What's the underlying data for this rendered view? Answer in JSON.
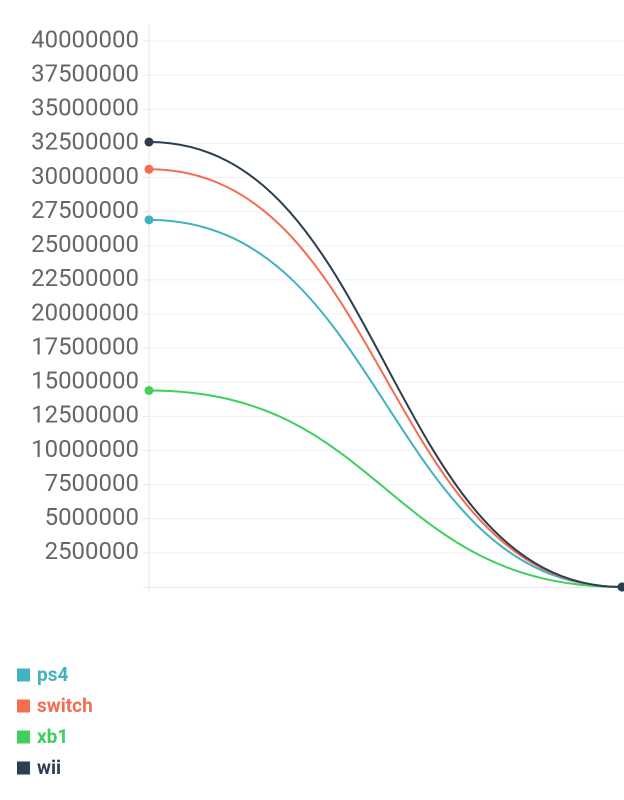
{
  "chart_data": {
    "type": "line",
    "categories": [
      null,
      null
    ],
    "series": [
      {
        "name": "ps4",
        "color": "#41b3c0",
        "values": [
          26900000,
          0
        ]
      },
      {
        "name": "switch",
        "color": "#f46d4f",
        "values": [
          30600000,
          0
        ]
      },
      {
        "name": "xb1",
        "color": "#3ecf5c",
        "values": [
          14400000,
          0
        ]
      },
      {
        "name": "wii",
        "color": "#2c3e50",
        "values": [
          32600000,
          0
        ]
      }
    ],
    "ylim": [
      0,
      40000000
    ],
    "yticks": [
      2500000,
      5000000,
      7500000,
      10000000,
      12500000,
      15000000,
      17500000,
      20000000,
      22500000,
      25000000,
      27500000,
      30000000,
      32500000,
      35000000,
      37500000,
      40000000
    ],
    "grid": true,
    "legend": "bottom-left"
  }
}
